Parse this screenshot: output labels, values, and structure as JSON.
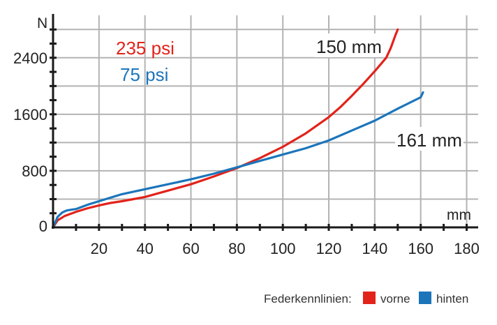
{
  "chart_data": {
    "type": "line",
    "xlabel": "mm",
    "ylabel": "N",
    "xlim": [
      0,
      185
    ],
    "ylim": [
      0,
      3000
    ],
    "x_ticks": [
      20,
      40,
      60,
      80,
      100,
      120,
      140,
      160,
      180
    ],
    "y_ticks": [
      0,
      800,
      1600,
      2400
    ],
    "x_tick_labels": [
      "20",
      "40",
      "60",
      "80",
      "100",
      "120",
      "140",
      "160",
      "180"
    ],
    "y_tick_labels": [
      "0",
      "800",
      "1600",
      "2400"
    ],
    "grid": true,
    "colors": {
      "vorne": "#e2231a",
      "hinten": "#1b75bb",
      "grid": "#b3b3b3",
      "axis": "#1a1a1a"
    },
    "series": [
      {
        "name": "vorne",
        "color": "#e2231a",
        "x": [
          0,
          2,
          5,
          10,
          15,
          20,
          25,
          30,
          35,
          40,
          50,
          60,
          70,
          80,
          90,
          100,
          110,
          120,
          125,
          130,
          135,
          140,
          145,
          147,
          149,
          150
        ],
        "y": [
          0,
          100,
          160,
          220,
          270,
          310,
          345,
          370,
          400,
          430,
          520,
          610,
          720,
          840,
          980,
          1140,
          1330,
          1560,
          1700,
          1860,
          2030,
          2210,
          2400,
          2540,
          2720,
          2800
        ]
      },
      {
        "name": "hinten",
        "color": "#1b75bb",
        "x": [
          0,
          2,
          4,
          6,
          10,
          15,
          20,
          25,
          30,
          40,
          50,
          60,
          70,
          80,
          90,
          100,
          110,
          120,
          130,
          140,
          150,
          160,
          161
        ],
        "y": [
          0,
          150,
          210,
          240,
          260,
          320,
          370,
          420,
          470,
          540,
          610,
          680,
          760,
          850,
          940,
          1030,
          1120,
          1230,
          1370,
          1510,
          1680,
          1840,
          1910
        ]
      }
    ],
    "annotations": [
      {
        "text": "235 psi",
        "color": "#e2231a"
      },
      {
        "text": "75 psi",
        "color": "#1b75bb"
      },
      {
        "text": "150 mm",
        "color": "#222222"
      },
      {
        "text": "161 mm",
        "color": "#222222"
      }
    ],
    "legend": {
      "title": "Federkennlinien:",
      "placement": "bottom-right",
      "entries": [
        {
          "label": "vorne",
          "color": "#e2231a"
        },
        {
          "label": "hinten",
          "color": "#1b75bb"
        }
      ]
    }
  }
}
